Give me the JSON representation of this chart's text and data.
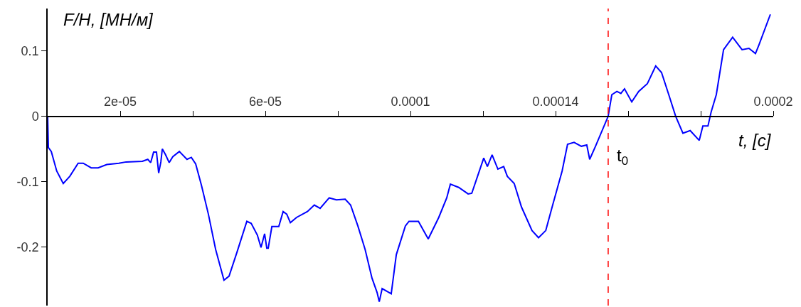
{
  "chart_data": {
    "type": "line",
    "xlabel": "t, [c]",
    "ylabel": "F/H, [МН/м]",
    "annotations": [
      {
        "text": "t$_{0}$",
        "x": 0.0001545,
        "y": -0.062
      }
    ],
    "x": [
      0,
      2e-07,
      1e-06,
      2.5e-06,
      4.3e-06,
      6.1e-06,
      8.4e-06,
      9.8e-06,
      1.2e-05,
      1.39e-05,
      1.63e-05,
      1.96e-05,
      2.16e-05,
      2.61e-05,
      2.76e-05,
      2.84e-05,
      2.92e-05,
      3e-05,
      3.06e-05,
      3.12e-05,
      3.16e-05,
      3.25e-05,
      3.35e-05,
      3.45e-05,
      3.63e-05,
      3.84e-05,
      3.96e-05,
      4.08e-05,
      4.24e-05,
      4.43e-05,
      4.63e-05,
      4.86e-05,
      5e-05,
      5.22e-05,
      5.49e-05,
      5.61e-05,
      5.78e-05,
      5.88e-05,
      5.98e-05,
      6.04e-05,
      6.08e-05,
      6.18e-05,
      6.37e-05,
      6.49e-05,
      6.59e-05,
      6.69e-05,
      6.86e-05,
      7.16e-05,
      7.35e-05,
      7.51e-05,
      7.76e-05,
      7.96e-05,
      8.2e-05,
      8.35e-05,
      8.55e-05,
      8.75e-05,
      8.94e-05,
      9.08e-05,
      9.14e-05,
      9.22e-05,
      9.47e-05,
      9.61e-05,
      9.86e-05,
      9.96e-05,
      0.0001022,
      0.0001049,
      0.0001078,
      0.00011,
      0.000111,
      0.0001133,
      0.0001159,
      0.0001169,
      0.0001202,
      0.0001212,
      0.0001225,
      0.0001241,
      0.0001257,
      0.0001267,
      0.0001286,
      0.0001306,
      0.0001335,
      0.0001353,
      0.0001373,
      0.0001392,
      0.0001418,
      0.0001433,
      0.0001451,
      0.0001471,
      0.0001486,
      0.0001494,
      0.000151,
      0.0001545,
      0.0001555,
      0.0001569,
      0.000158,
      0.000159,
      0.000161,
      0.0001629,
      0.0001653,
      0.0001676,
      0.0001692,
      0.0001712,
      0.0001731,
      0.0001751,
      0.0001771,
      0.0001796,
      0.0001806,
      0.000182,
      0.0001829,
      0.0001843,
      0.0001863,
      0.0001888,
      0.0001914,
      0.0001933,
      0.0001951,
      0.0001961,
      0.0001992
    ],
    "series": [
      {
        "color": "#0000ff",
        "values": [
          0,
          -0.048,
          -0.054,
          -0.084,
          -0.103,
          -0.092,
          -0.072,
          -0.072,
          -0.079,
          -0.079,
          -0.074,
          -0.072,
          -0.07,
          -0.069,
          -0.066,
          -0.071,
          -0.055,
          -0.055,
          -0.087,
          -0.07,
          -0.05,
          -0.059,
          -0.071,
          -0.062,
          -0.054,
          -0.066,
          -0.063,
          -0.073,
          -0.106,
          -0.15,
          -0.204,
          -0.251,
          -0.245,
          -0.208,
          -0.161,
          -0.164,
          -0.182,
          -0.201,
          -0.18,
          -0.202,
          -0.202,
          -0.169,
          -0.169,
          -0.146,
          -0.15,
          -0.163,
          -0.155,
          -0.146,
          -0.136,
          -0.141,
          -0.125,
          -0.128,
          -0.127,
          -0.136,
          -0.168,
          -0.204,
          -0.248,
          -0.27,
          -0.284,
          -0.264,
          -0.272,
          -0.212,
          -0.168,
          -0.161,
          -0.161,
          -0.188,
          -0.155,
          -0.125,
          -0.104,
          -0.109,
          -0.119,
          -0.118,
          -0.064,
          -0.077,
          -0.059,
          -0.081,
          -0.077,
          -0.092,
          -0.103,
          -0.139,
          -0.175,
          -0.186,
          -0.175,
          -0.136,
          -0.084,
          -0.043,
          -0.04,
          -0.046,
          -0.044,
          -0.066,
          -0.046,
          0,
          0.033,
          0.038,
          0.035,
          0.042,
          0.022,
          0.038,
          0.05,
          0.077,
          0.067,
          0.033,
          0,
          -0.026,
          -0.022,
          -0.037,
          -0.015,
          -0.015,
          0.007,
          0.033,
          0.102,
          0.121,
          0.102,
          0.104,
          0.096,
          0.11,
          0.156
        ]
      }
    ],
    "xlim": [
      0,
      0.0002
    ],
    "ylim": [
      -0.29,
      0.165
    ],
    "xticks": [
      {
        "value": 2e-05,
        "label": "2e-05"
      },
      {
        "value": 4e-05,
        "label": null
      },
      {
        "value": 6e-05,
        "label": "6e-05"
      },
      {
        "value": 8e-05,
        "label": null
      },
      {
        "value": 0.0001,
        "label": "0.0001"
      },
      {
        "value": 0.00012,
        "label": null
      },
      {
        "value": 0.00014,
        "label": "0.00014"
      },
      {
        "value": 0.00016,
        "label": null
      },
      {
        "value": 0.00018,
        "label": null
      },
      {
        "value": 0.0002,
        "label": "0.0002"
      }
    ],
    "yticks": [
      {
        "value": -0.2,
        "label": "-0.2"
      },
      {
        "value": -0.1,
        "label": "-0.1"
      },
      {
        "value": 0,
        "label": "0"
      },
      {
        "value": 0.1,
        "label": "0.1"
      }
    ],
    "ref_lines": [
      {
        "axis": "x",
        "value": 0.0001545,
        "color": "#ff0000",
        "line_style": "dashed"
      }
    ],
    "marker": "none",
    "line_style": "solid"
  }
}
